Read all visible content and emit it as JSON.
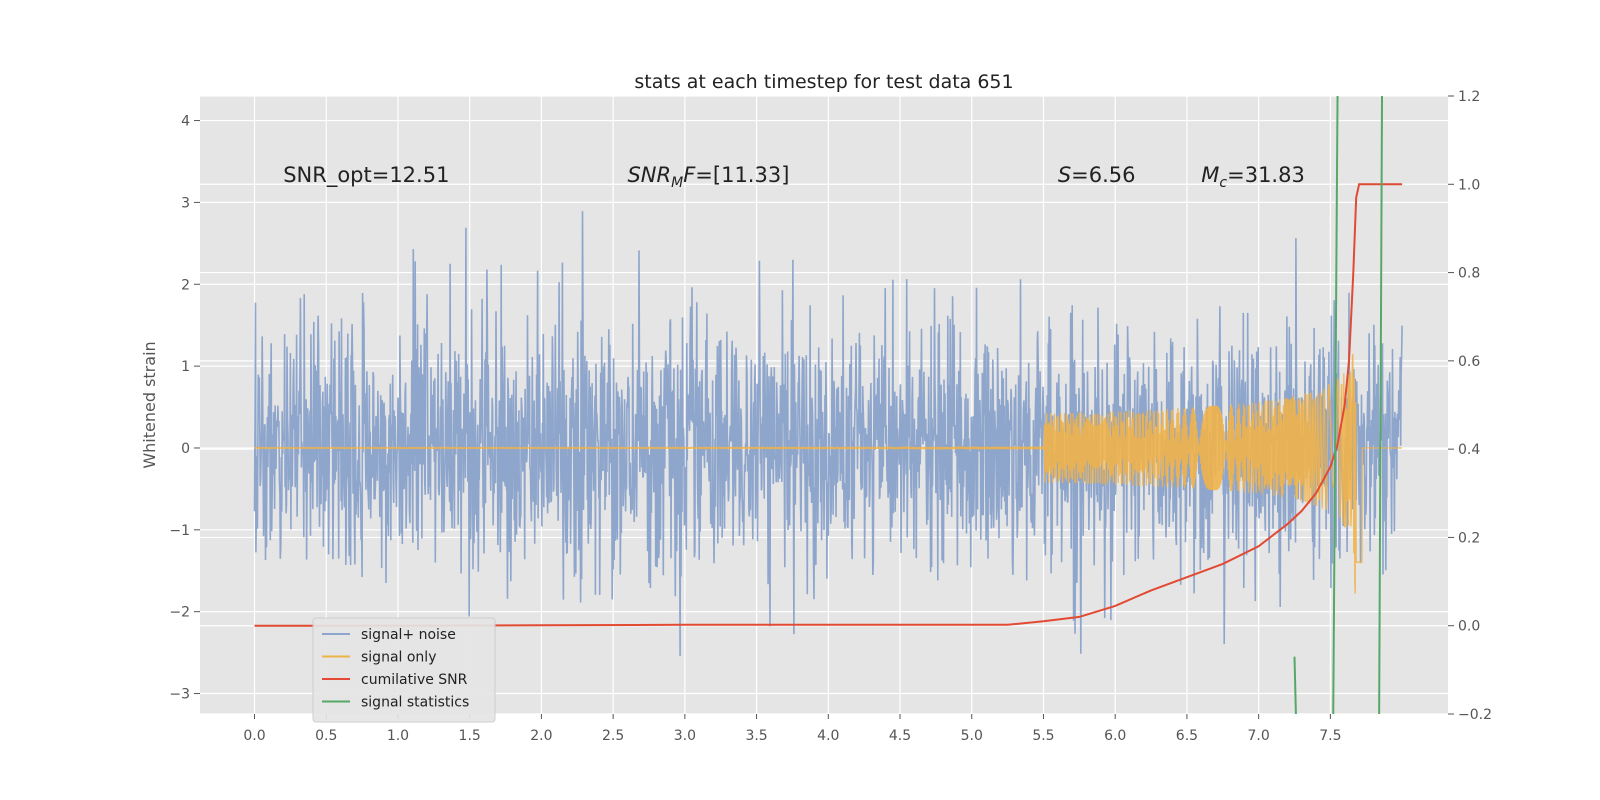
{
  "chart_data": {
    "type": "line",
    "title": "stats at each timestep for test data 651",
    "xlabel": "",
    "ylabel": "Whitened strain",
    "y2label": "",
    "xlim": [
      -0.38,
      8.32
    ],
    "ylim": [
      -3.25,
      4.3
    ],
    "y2lim": [
      -0.2,
      1.2
    ],
    "x_ticks": [
      0.0,
      0.5,
      1.0,
      1.5,
      2.0,
      2.5,
      3.0,
      3.5,
      4.0,
      4.5,
      5.0,
      5.5,
      6.0,
      6.5,
      7.0,
      7.5
    ],
    "x_tick_labels": [
      "0.0",
      "0.5",
      "1.0",
      "1.5",
      "2.0",
      "2.5",
      "3.0",
      "3.5",
      "4.0",
      "4.5",
      "5.0",
      "5.5",
      "6.0",
      "6.5",
      "7.0",
      "7.5"
    ],
    "y_ticks": [
      -3,
      -2,
      -1,
      0,
      1,
      2,
      3,
      4
    ],
    "y_tick_labels": [
      "−3",
      "−2",
      "−1",
      "0",
      "1",
      "2",
      "3",
      "4"
    ],
    "y2_ticks": [
      -0.2,
      0.0,
      0.2,
      0.4,
      0.6,
      0.8,
      1.0,
      1.2
    ],
    "y2_tick_labels": [
      "−0.2",
      "0.0",
      "0.2",
      "0.4",
      "0.6",
      "0.8",
      "1.0",
      "1.2"
    ],
    "grid": true,
    "legend_position": "lower-left",
    "series": [
      {
        "name": "signal+ noise",
        "color": "#8ea5cc",
        "axis": "left",
        "noise_std": 0.75,
        "x_range": [
          0.0,
          8.0
        ]
      },
      {
        "name": "signal only",
        "color": "#f0b24a",
        "axis": "left",
        "x_range": [
          0.0,
          8.0
        ],
        "max_amplitude": 2.2,
        "peak_x": 7.68
      },
      {
        "name": "cumilative SNR",
        "color": "#e24a33",
        "axis": "right",
        "x": [
          0.0,
          1.0,
          2.0,
          3.0,
          4.0,
          5.0,
          5.25,
          5.5,
          5.75,
          6.0,
          6.25,
          6.5,
          6.75,
          7.0,
          7.2,
          7.3,
          7.4,
          7.5,
          7.55,
          7.6,
          7.63,
          7.66,
          7.68,
          7.7,
          8.0
        ],
        "y": [
          0.0,
          0.0,
          0.001,
          0.002,
          0.002,
          0.002,
          0.002,
          0.01,
          0.02,
          0.045,
          0.08,
          0.11,
          0.14,
          0.18,
          0.23,
          0.26,
          0.3,
          0.36,
          0.41,
          0.5,
          0.6,
          0.8,
          0.97,
          1.0,
          1.0
        ]
      },
      {
        "name": "signal statistics",
        "color": "#55a868",
        "axis": "left",
        "x": [
          7.25,
          7.26
        ],
        "y": [
          -2.55,
          -3.25
        ]
      }
    ],
    "vertical_lines": [
      {
        "series": "signal statistics",
        "x1": 7.52,
        "x2": 7.55,
        "color": "#55a868"
      },
      {
        "series": "signal statistics",
        "x1": 7.84,
        "x2": 7.86,
        "color": "#55a868"
      }
    ],
    "annotations": [
      {
        "id": "snr_opt",
        "text": "SNR_opt=12.51",
        "x": 0.2,
        "y": 3.25
      },
      {
        "id": "snr_mf",
        "text": "SNR",
        "sub": "M",
        "tail": "F=[11.33]",
        "x": 2.6,
        "y": 3.25
      },
      {
        "id": "s_val",
        "text": "S",
        "tail": "=6.56",
        "x": 5.6,
        "y": 3.25
      },
      {
        "id": "mc_val",
        "text": "M",
        "sub": "c",
        "tail": "=31.83",
        "x": 6.6,
        "y": 3.25
      }
    ]
  }
}
